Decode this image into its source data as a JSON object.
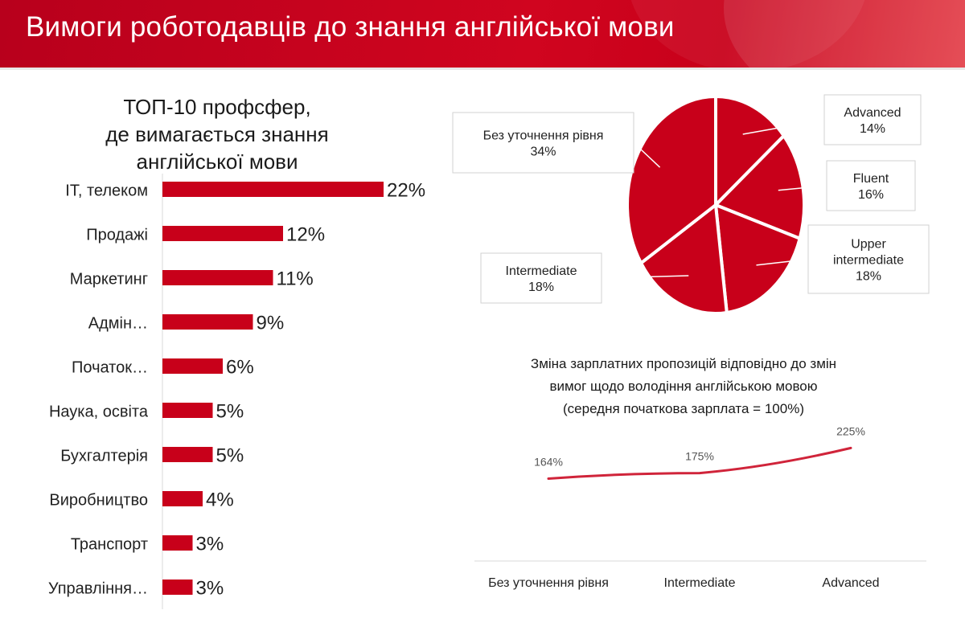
{
  "header": {
    "title": "Вимоги роботодавців до знання англійської мови"
  },
  "chart_data": [
    {
      "type": "bar",
      "orientation": "horizontal",
      "title": "ТОП-10 профсфер, де вимагається знання англійської мови",
      "categories": [
        "IT, телеком",
        "Продажі",
        "Маркетинг",
        "Адмін…",
        "Початок…",
        "Наука, освіта",
        "Бухгалтерія",
        "Виробництво",
        "Транспорт",
        "Управління…"
      ],
      "values": [
        22,
        12,
        11,
        9,
        6,
        5,
        5,
        4,
        3,
        3
      ],
      "value_labels": [
        "22%",
        "12%",
        "11%",
        "9%",
        "6%",
        "5%",
        "5%",
        "4%",
        "3%",
        "3%"
      ],
      "unit": "%",
      "color": "#c8001a",
      "xlim": [
        0,
        22
      ]
    },
    {
      "type": "pie",
      "slices": [
        {
          "label": "Advanced",
          "value": 14,
          "value_label": "14%"
        },
        {
          "label": "Fluent",
          "value": 16,
          "value_label": "16%"
        },
        {
          "label": "Upper intermediate",
          "value": 18,
          "value_label": "18%"
        },
        {
          "label": "Intermediate",
          "value": 18,
          "value_label": "18%"
        },
        {
          "label": "Без уточнення рівня",
          "value": 34,
          "value_label": "34%"
        }
      ],
      "color": "#c8001a",
      "border_color": "#ffffff"
    },
    {
      "type": "line",
      "title": "Зміна зарплатних пропозицій відповідно до змін вимог щодо володіння англійською мовою (середня початкова зарплата = 100%)",
      "title_lines": [
        "Зміна зарплатних пропозицій відповідно до змін",
        "вимог щодо володіння англійською мовою",
        "(середня початкова зарплата = 100%)"
      ],
      "categories": [
        "Без уточнення рівня",
        "Intermediate",
        "Advanced"
      ],
      "series": [
        {
          "values": [
            164,
            175,
            225
          ],
          "value_labels": [
            "164%",
            "175%",
            "225%"
          ]
        }
      ],
      "color": "#d0243a",
      "ylim": [
        0,
        400
      ]
    }
  ]
}
